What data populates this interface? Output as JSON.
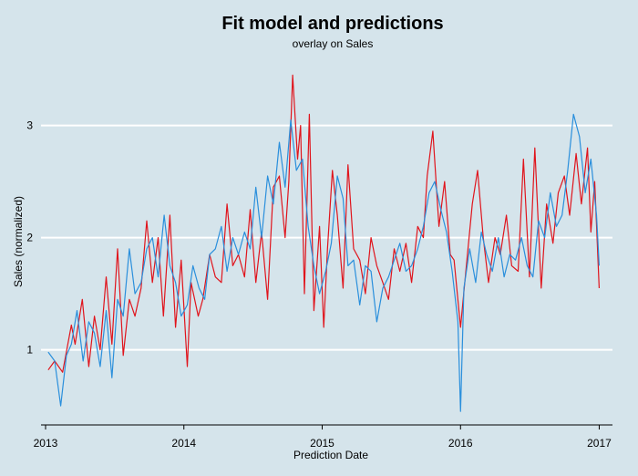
{
  "chart_data": {
    "type": "line",
    "title": "Fit model and predictions",
    "subtitle": "overlay on Sales",
    "xlabel": "Prediction Date",
    "ylabel": "Sales (normalized)",
    "x_ticks": [
      "2013",
      "2014",
      "2015",
      "2016",
      "2017"
    ],
    "y_ticks": [
      1,
      2,
      3
    ],
    "xlim": [
      "2012-12-20",
      "2017-02-05"
    ],
    "ylim": [
      0.33,
      3.55
    ],
    "grid": true,
    "legend": "none",
    "colors": {
      "background": "#d5e4eb",
      "series_red": "#e0141c",
      "series_blue": "#2a8fdc",
      "grid": "#ffffff"
    },
    "series": [
      {
        "color": "#e0141c",
        "x": [
          "2013-01-08",
          "2013-01-25",
          "2013-02-15",
          "2013-03-10",
          "2013-03-20",
          "2013-04-08",
          "2013-04-25",
          "2013-05-10",
          "2013-05-25",
          "2013-06-10",
          "2013-06-25",
          "2013-07-10",
          "2013-07-25",
          "2013-08-10",
          "2013-08-25",
          "2013-09-10",
          "2013-09-25",
          "2013-10-10",
          "2013-10-25",
          "2013-11-08",
          "2013-11-25",
          "2013-12-10",
          "2013-12-25",
          "2014-01-10",
          "2014-01-20",
          "2014-02-08",
          "2014-02-20",
          "2014-03-10",
          "2014-03-25",
          "2014-04-10",
          "2014-04-25",
          "2014-05-10",
          "2014-05-25",
          "2014-06-10",
          "2014-06-25",
          "2014-07-10",
          "2014-07-25",
          "2014-08-10",
          "2014-08-25",
          "2014-09-10",
          "2014-09-25",
          "2014-10-05",
          "2014-10-15",
          "2014-10-28",
          "2014-11-05",
          "2014-11-15",
          "2014-11-28",
          "2014-12-10",
          "2014-12-25",
          "2015-01-05",
          "2015-01-15",
          "2015-01-28",
          "2015-02-10",
          "2015-02-25",
          "2015-03-10",
          "2015-03-25",
          "2015-04-10",
          "2015-04-25",
          "2015-05-10",
          "2015-05-25",
          "2015-06-10",
          "2015-06-25",
          "2015-07-10",
          "2015-07-25",
          "2015-08-10",
          "2015-08-25",
          "2015-09-10",
          "2015-09-25",
          "2015-10-05",
          "2015-10-20",
          "2015-11-05",
          "2015-11-20",
          "2015-12-05",
          "2015-12-15",
          "2016-01-01",
          "2016-01-15",
          "2016-02-01",
          "2016-02-15",
          "2016-03-01",
          "2016-03-15",
          "2016-04-01",
          "2016-04-15",
          "2016-05-01",
          "2016-05-15",
          "2016-06-01",
          "2016-06-15",
          "2016-07-01",
          "2016-07-15",
          "2016-08-01",
          "2016-08-15",
          "2016-09-01",
          "2016-09-15",
          "2016-10-01",
          "2016-10-15",
          "2016-11-01",
          "2016-11-15",
          "2016-12-01",
          "2016-12-10",
          "2016-12-20",
          "2017-01-01"
        ],
        "y": [
          0.82,
          0.9,
          0.8,
          1.22,
          1.05,
          1.45,
          0.85,
          1.3,
          1.0,
          1.65,
          1.05,
          1.9,
          0.95,
          1.45,
          1.3,
          1.55,
          2.15,
          1.6,
          2.0,
          1.3,
          2.2,
          1.2,
          1.8,
          0.85,
          1.6,
          1.3,
          1.45,
          1.85,
          1.65,
          1.6,
          2.3,
          1.75,
          1.85,
          1.65,
          2.25,
          1.6,
          2.05,
          1.45,
          2.45,
          2.55,
          2.0,
          2.5,
          3.45,
          2.7,
          3.0,
          1.5,
          3.1,
          1.35,
          2.1,
          1.2,
          1.9,
          2.6,
          2.2,
          1.55,
          2.65,
          1.9,
          1.8,
          1.5,
          2.0,
          1.75,
          1.6,
          1.45,
          1.9,
          1.7,
          1.95,
          1.6,
          2.1,
          2.0,
          2.55,
          2.95,
          2.1,
          2.5,
          1.85,
          1.8,
          1.2,
          1.7,
          2.3,
          2.6,
          2.0,
          1.6,
          2.0,
          1.85,
          2.2,
          1.75,
          1.7,
          2.7,
          1.65,
          2.8,
          1.55,
          2.3,
          1.95,
          2.4,
          2.55,
          2.2,
          2.75,
          2.3,
          2.8,
          2.05,
          2.5,
          1.55
        ]
      },
      {
        "color": "#2a8fdc",
        "x": [
          "2013-01-08",
          "2013-01-25",
          "2013-02-10",
          "2013-02-25",
          "2013-03-10",
          "2013-03-25",
          "2013-04-10",
          "2013-04-25",
          "2013-05-10",
          "2013-05-25",
          "2013-06-10",
          "2013-06-25",
          "2013-07-10",
          "2013-07-25",
          "2013-08-10",
          "2013-08-25",
          "2013-09-10",
          "2013-09-25",
          "2013-10-10",
          "2013-10-25",
          "2013-11-10",
          "2013-11-25",
          "2013-12-10",
          "2013-12-25",
          "2014-01-10",
          "2014-01-25",
          "2014-02-10",
          "2014-02-25",
          "2014-03-10",
          "2014-03-25",
          "2014-04-10",
          "2014-04-25",
          "2014-05-10",
          "2014-05-25",
          "2014-06-10",
          "2014-06-25",
          "2014-07-10",
          "2014-07-25",
          "2014-08-10",
          "2014-08-25",
          "2014-09-10",
          "2014-09-25",
          "2014-10-10",
          "2014-10-25",
          "2014-11-10",
          "2014-11-25",
          "2014-12-10",
          "2014-12-25",
          "2015-01-10",
          "2015-01-25",
          "2015-02-10",
          "2015-02-25",
          "2015-03-10",
          "2015-03-25",
          "2015-04-10",
          "2015-04-25",
          "2015-05-10",
          "2015-05-25",
          "2015-06-10",
          "2015-06-25",
          "2015-07-10",
          "2015-07-25",
          "2015-08-10",
          "2015-08-25",
          "2015-09-10",
          "2015-09-25",
          "2015-10-10",
          "2015-10-25",
          "2015-11-10",
          "2015-11-25",
          "2015-12-10",
          "2015-12-25",
          "2016-01-01",
          "2016-01-10",
          "2016-01-25",
          "2016-02-10",
          "2016-02-25",
          "2016-03-10",
          "2016-03-25",
          "2016-04-10",
          "2016-04-25",
          "2016-05-10",
          "2016-05-25",
          "2016-06-10",
          "2016-06-25",
          "2016-07-10",
          "2016-07-25",
          "2016-08-10",
          "2016-08-25",
          "2016-09-10",
          "2016-09-25",
          "2016-10-10",
          "2016-10-25",
          "2016-11-10",
          "2016-11-25",
          "2016-12-10",
          "2016-12-25",
          "2017-01-01"
        ],
        "y": [
          0.98,
          0.9,
          0.5,
          0.95,
          1.05,
          1.35,
          0.9,
          1.25,
          1.15,
          0.85,
          1.35,
          0.75,
          1.45,
          1.3,
          1.9,
          1.5,
          1.6,
          1.9,
          2.0,
          1.65,
          2.2,
          1.75,
          1.6,
          1.3,
          1.4,
          1.75,
          1.55,
          1.45,
          1.85,
          1.9,
          2.1,
          1.7,
          2.0,
          1.85,
          2.05,
          1.9,
          2.45,
          2.0,
          2.55,
          2.3,
          2.85,
          2.45,
          3.05,
          2.6,
          2.7,
          2.1,
          1.75,
          1.5,
          1.7,
          1.95,
          2.55,
          2.35,
          1.75,
          1.8,
          1.4,
          1.75,
          1.7,
          1.25,
          1.55,
          1.65,
          1.8,
          1.95,
          1.7,
          1.75,
          1.9,
          2.1,
          2.4,
          2.5,
          2.25,
          2.05,
          1.7,
          1.25,
          0.45,
          1.55,
          1.9,
          1.6,
          2.05,
          1.85,
          1.7,
          2.0,
          1.65,
          1.85,
          1.8,
          2.0,
          1.75,
          1.65,
          2.15,
          2.0,
          2.4,
          2.1,
          2.2,
          2.6,
          3.1,
          2.9,
          2.4,
          2.7,
          2.2,
          1.75
        ]
      }
    ]
  }
}
